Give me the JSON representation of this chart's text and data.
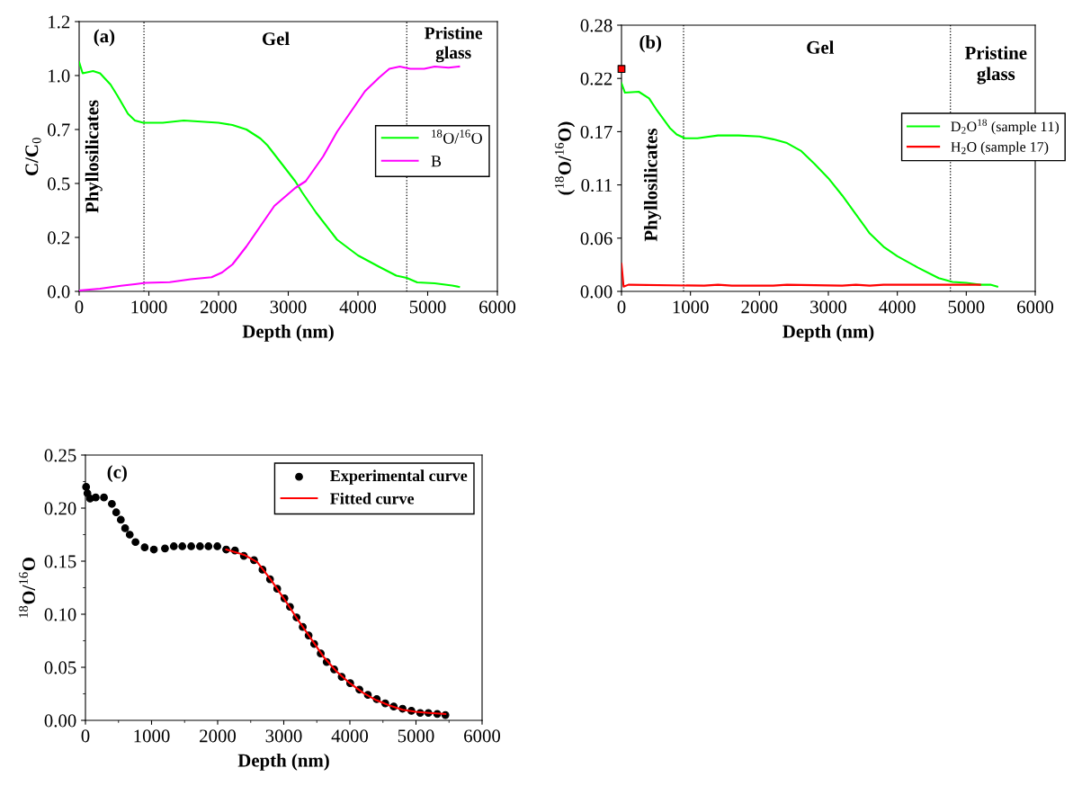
{
  "chart_data": [
    {
      "type": "line",
      "xlabel": "Depth (nm)",
      "ylabel": "C/C$_{0}$",
      "xlim": [
        0,
        6000
      ],
      "xticks": [
        0,
        1000,
        2000,
        3000,
        4000,
        5000,
        6000
      ],
      "ylim": [
        0,
        1.2
      ],
      "yticks": [
        {
          "value": 0,
          "label": "0.0"
        },
        {
          "value": 0.24,
          "label": "0.2"
        },
        {
          "value": 0.48,
          "label": "0.5"
        },
        {
          "value": 0.72,
          "label": "0.7"
        },
        {
          "value": 0.96,
          "label": "1.0"
        },
        {
          "value": 1.2,
          "label": "1.2"
        }
      ],
      "grid": false,
      "legend": "right",
      "annotations": [
        "(a)",
        "Gel",
        "Pristine\nglass",
        "Phyllosilicates"
      ],
      "ref_lines": [
        {
          "axis": "x",
          "value": 930,
          "color": "#000000",
          "line_style": "dotted"
        },
        {
          "axis": "x",
          "value": 4700,
          "color": "#000000",
          "line_style": "dotted"
        }
      ],
      "series": [
        {
          "name": "$^{18}$O/$^{16}$O",
          "color": "#00ff00",
          "x": [
            0,
            50,
            200,
            300,
            450,
            550,
            700,
            800,
            920,
            1200,
            1500,
            2000,
            2200,
            2400,
            2600,
            2700,
            2900,
            3100,
            3200,
            3400,
            3700,
            4000,
            4300,
            4550,
            4700,
            4850,
            5100,
            5350,
            5450
          ],
          "values": [
            1.02,
            0.97,
            0.98,
            0.97,
            0.92,
            0.87,
            0.79,
            0.76,
            0.75,
            0.75,
            0.76,
            0.75,
            0.74,
            0.72,
            0.68,
            0.65,
            0.57,
            0.49,
            0.44,
            0.35,
            0.23,
            0.16,
            0.11,
            0.07,
            0.06,
            0.04,
            0.036,
            0.026,
            0.02
          ]
        },
        {
          "name": "B",
          "color": "#ff00ff",
          "x": [
            0,
            300,
            600,
            800,
            950,
            1300,
            1600,
            1900,
            2050,
            2200,
            2400,
            2600,
            2800,
            2950,
            3100,
            3250,
            3500,
            3700,
            3900,
            4100,
            4300,
            4450,
            4600,
            4750,
            4950,
            5100,
            5300,
            5450
          ],
          "values": [
            0.004,
            0.012,
            0.025,
            0.032,
            0.038,
            0.041,
            0.054,
            0.063,
            0.084,
            0.12,
            0.2,
            0.29,
            0.38,
            0.42,
            0.46,
            0.49,
            0.6,
            0.71,
            0.8,
            0.89,
            0.95,
            0.99,
            1.0,
            0.99,
            0.99,
            1.0,
            0.995,
            1.0
          ]
        }
      ]
    },
    {
      "type": "line",
      "xlabel": "Depth (nm)",
      "ylabel": "($^{18}$O/$^{16}$O)",
      "xlim": [
        0,
        6000
      ],
      "xticks": [
        0,
        1000,
        2000,
        3000,
        4000,
        5000,
        6000
      ],
      "ylim": [
        0,
        0.28
      ],
      "yticks": [
        {
          "value": 0,
          "label": "0.00"
        },
        {
          "value": 0.056,
          "label": "0.06"
        },
        {
          "value": 0.112,
          "label": "0.11"
        },
        {
          "value": 0.168,
          "label": "0.17"
        },
        {
          "value": 0.224,
          "label": "0.22"
        },
        {
          "value": 0.28,
          "label": "0.28"
        }
      ],
      "grid": false,
      "legend": "right",
      "annotations": [
        "(b)",
        "Gel",
        "Pristine\nglass",
        "Phyllosilicates"
      ],
      "ref_lines": [
        {
          "axis": "x",
          "value": 900,
          "color": "#000000",
          "line_style": "dotted"
        },
        {
          "axis": "x",
          "value": 4770,
          "color": "#000000",
          "line_style": "dotted"
        }
      ],
      "series": [
        {
          "name": "D$_{2}$O$^{18}$ (sample 11)",
          "color": "#00ff00",
          "x": [
            0,
            50,
            250,
            400,
            500,
            700,
            800,
            920,
            1100,
            1400,
            1700,
            2000,
            2200,
            2400,
            2600,
            2800,
            3000,
            3200,
            3400,
            3600,
            3800,
            4000,
            4300,
            4600,
            4800,
            5000,
            5200,
            5350,
            5450
          ],
          "values": [
            0.219,
            0.209,
            0.21,
            0.203,
            0.192,
            0.172,
            0.165,
            0.161,
            0.161,
            0.164,
            0.164,
            0.163,
            0.16,
            0.156,
            0.148,
            0.134,
            0.119,
            0.101,
            0.081,
            0.061,
            0.047,
            0.037,
            0.025,
            0.014,
            0.01,
            0.009,
            0.007,
            0.007,
            0.005
          ]
        },
        {
          "name": "H$_{2}$O (sample 17)",
          "color": "#ff0000",
          "x": [
            0,
            30,
            100,
            1200,
            1400,
            1600,
            2200,
            2400,
            3200,
            3400,
            3600,
            3800,
            5200
          ],
          "values": [
            0.029,
            0.005,
            0.007,
            0.006,
            0.007,
            0.006,
            0.006,
            0.007,
            0.006,
            0.007,
            0.006,
            0.007,
            0.007
          ]
        },
        {
          "type": "scatter",
          "marker": "square",
          "color": "#ff0000",
          "x": [
            0
          ],
          "values": [
            0.234
          ]
        }
      ]
    },
    {
      "type": "scatter",
      "xlabel": "Depth (nm)",
      "ylabel": "$^{18}$O/$^{16}$O",
      "xlim": [
        0,
        6000
      ],
      "xticks": [
        0,
        1000,
        2000,
        3000,
        4000,
        5000,
        6000
      ],
      "ylim": [
        0,
        0.25
      ],
      "yticks": [
        {
          "value": 0,
          "label": "0.00"
        },
        {
          "value": 0.05,
          "label": "0.05"
        },
        {
          "value": 0.1,
          "label": "0.10"
        },
        {
          "value": 0.15,
          "label": "0.15"
        },
        {
          "value": 0.2,
          "label": "0.20"
        },
        {
          "value": 0.25,
          "label": "0.25"
        }
      ],
      "grid": false,
      "legend": "top right",
      "annotations": [
        "(c)"
      ],
      "series": [
        {
          "name": "Experimental curve",
          "type": "scatter",
          "marker": "circle",
          "color": "#000000",
          "x": [
            10,
            30,
            70,
            155,
            280,
            400,
            465,
            535,
            600,
            670,
            757,
            896,
            1035,
            1203,
            1337,
            1465,
            1600,
            1733,
            1861,
            1995,
            2129,
            2262,
            2396,
            2550,
            2678,
            2792,
            2901,
            3010,
            3094,
            3193,
            3287,
            3376,
            3460,
            3559,
            3649,
            3762,
            3876,
            4005,
            4144,
            4272,
            4406,
            4535,
            4663,
            4797,
            4931,
            5064,
            5188,
            5322,
            5445
          ],
          "values": [
            0.22,
            0.214,
            0.209,
            0.21,
            0.21,
            0.204,
            0.196,
            0.189,
            0.181,
            0.175,
            0.168,
            0.163,
            0.161,
            0.162,
            0.164,
            0.164,
            0.164,
            0.164,
            0.164,
            0.164,
            0.161,
            0.16,
            0.155,
            0.151,
            0.142,
            0.133,
            0.124,
            0.115,
            0.107,
            0.097,
            0.088,
            0.08,
            0.072,
            0.063,
            0.055,
            0.048,
            0.041,
            0.035,
            0.029,
            0.024,
            0.02,
            0.016,
            0.013,
            0.011,
            0.009,
            0.007,
            0.007,
            0.006,
            0.005
          ]
        },
        {
          "name": "Fitted curve",
          "type": "line",
          "color": "#ff0000",
          "x": [
            2129,
            2400,
            2600,
            2800,
            3000,
            3200,
            3400,
            3600,
            3800,
            4000,
            4200,
            4400,
            4600,
            4800,
            5000,
            5200,
            5445
          ],
          "values": [
            0.161,
            0.156,
            0.149,
            0.133,
            0.115,
            0.096,
            0.078,
            0.06,
            0.046,
            0.035,
            0.026,
            0.019,
            0.014,
            0.01,
            0.008,
            0.007,
            0.006
          ]
        }
      ]
    }
  ]
}
